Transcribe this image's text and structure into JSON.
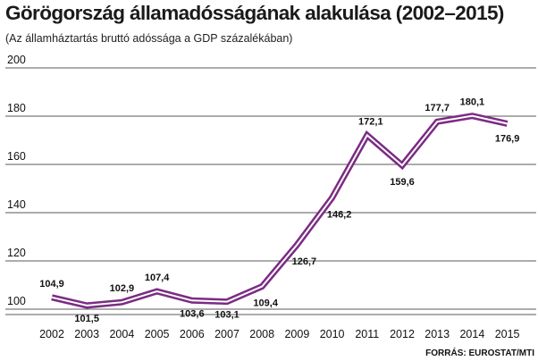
{
  "chart_data": {
    "type": "line",
    "title": "Görögország államadósságának alakulása (2002–2015)",
    "subtitle": "(Az államháztartás bruttó adóssága a GDP százalékában)",
    "source": "FORRÁS: EUROSTAT/MTI",
    "x": [
      "2002",
      "2003",
      "2004",
      "2005",
      "2006",
      "2007",
      "2008",
      "2009",
      "2010",
      "2011",
      "2012",
      "2013",
      "2014",
      "2015"
    ],
    "values": [
      104.9,
      101.5,
      102.9,
      107.4,
      103.6,
      103.1,
      109.4,
      126.7,
      146.2,
      172.1,
      159.6,
      177.7,
      180.1,
      176.9
    ],
    "labels": [
      "104,9",
      "101,5",
      "102,9",
      "107,4",
      "103,6",
      "103,1",
      "109,4",
      "126,7",
      "146,2",
      "172,1",
      "159,6",
      "177,7",
      "180,1",
      "176,9"
    ],
    "yticks": [
      100,
      120,
      140,
      160,
      180,
      200
    ],
    "ylim": [
      95,
      200
    ],
    "grid": true,
    "colors": {
      "line": "#7b2c84",
      "grid": "#222222"
    }
  }
}
